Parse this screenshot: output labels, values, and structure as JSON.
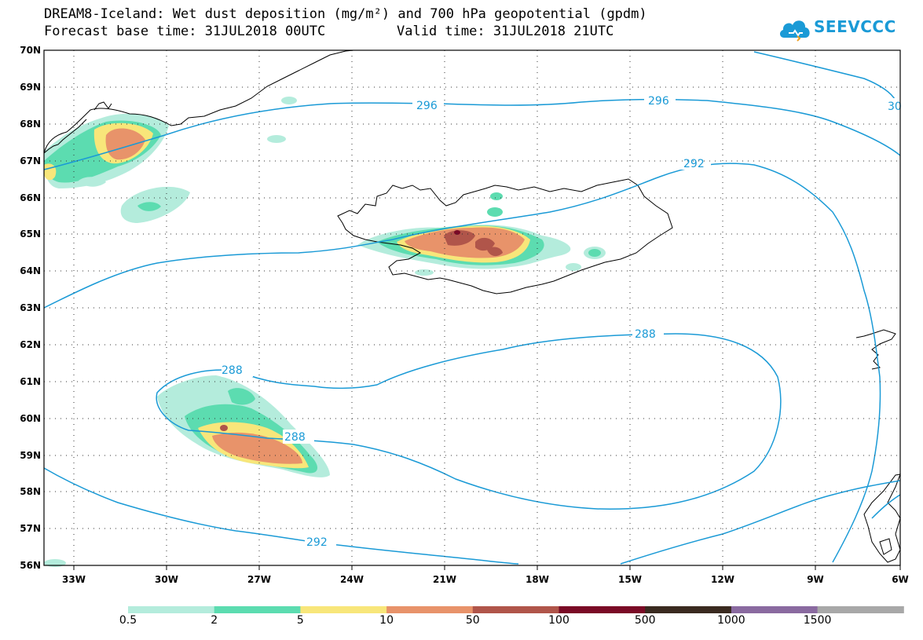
{
  "title": {
    "line1": "DREAM8-Iceland: Wet dust deposition (mg/m²) and 700 hPa geopotential (gpdm)",
    "line2": "Forecast base time: 31JUL2018 00UTC",
    "valid": "Valid time: 31JUL2018 21UTC"
  },
  "logo": {
    "text": "SEEVCCC",
    "icon": "cloud-logo-icon"
  },
  "map": {
    "lat_ticks": [
      "70N",
      "69N",
      "68N",
      "67N",
      "66N",
      "65N",
      "64N",
      "63N",
      "62N",
      "61N",
      "60N",
      "59N",
      "58N",
      "57N",
      "56N"
    ],
    "lon_ticks": [
      "33W",
      "30W",
      "27W",
      "24W",
      "21W",
      "18W",
      "15W",
      "12W",
      "9W",
      "6W"
    ],
    "contour_labels": [
      "296",
      "296",
      "30",
      "292",
      "288",
      "288",
      "288",
      "292"
    ]
  },
  "legend": {
    "labels": [
      "0.5",
      "2",
      "5",
      "10",
      "50",
      "100",
      "500",
      "1000",
      "1500"
    ],
    "colors": [
      "#b4ecdc",
      "#5cdcb0",
      "#f8e67a",
      "#e8936a",
      "#b0554a",
      "#7a0a26",
      "#3a2a20",
      "#8a6aa0",
      "#a8a8a8"
    ]
  }
}
